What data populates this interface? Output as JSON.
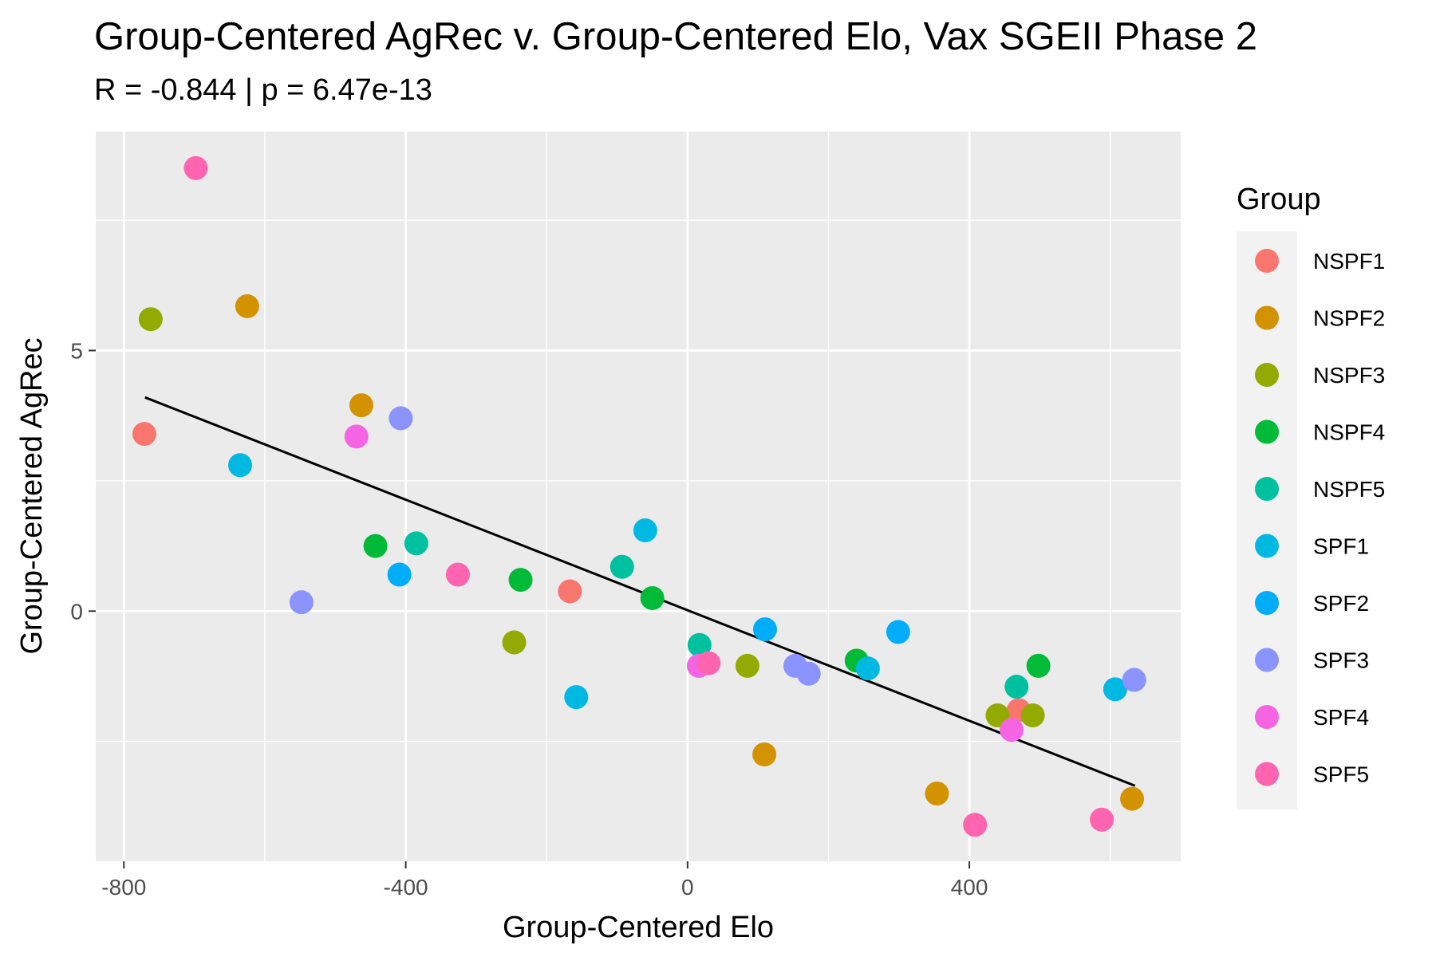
{
  "chart_data": {
    "type": "scatter",
    "title": "Group-Centered AgRec v. Group-Centered Elo, Vax SGEII Phase 2",
    "subtitle": "R = -0.844 | p = 6.47e-13",
    "xlabel": "Group-Centered Elo",
    "ylabel": "Group-Centered AgRec",
    "xlim": [
      -840,
      700
    ],
    "ylim": [
      -4.8,
      9.2
    ],
    "x_ticks": [
      -800,
      -400,
      0,
      400
    ],
    "y_ticks": [
      0,
      5
    ],
    "grid": true,
    "legend_title": "Group",
    "legend_position": "right",
    "trend_line": {
      "x": [
        -770,
        635
      ],
      "y": [
        4.1,
        -3.35
      ]
    },
    "series": [
      {
        "name": "NSPF1",
        "color": "#F8766D",
        "points": [
          [
            -771,
            3.4
          ],
          [
            -167,
            0.38
          ],
          [
            470,
            -1.9
          ]
        ]
      },
      {
        "name": "NSPF2",
        "color": "#D39200",
        "points": [
          [
            -625,
            5.85
          ],
          [
            -463,
            3.95
          ],
          [
            109,
            -2.75
          ],
          [
            354,
            -3.5
          ],
          [
            631,
            -3.6
          ]
        ]
      },
      {
        "name": "NSPF3",
        "color": "#93AA00",
        "points": [
          [
            -762,
            5.6
          ],
          [
            -246,
            -0.6
          ],
          [
            85,
            -1.05
          ],
          [
            440,
            -2.0
          ],
          [
            490,
            -2.0
          ]
        ]
      },
      {
        "name": "NSPF4",
        "color": "#00BA38",
        "points": [
          [
            -443,
            1.25
          ],
          [
            -237,
            0.6
          ],
          [
            -50,
            0.25
          ],
          [
            240,
            -0.95
          ],
          [
            498,
            -1.05
          ]
        ]
      },
      {
        "name": "NSPF5",
        "color": "#00C19F",
        "points": [
          [
            -385,
            1.3
          ],
          [
            -93,
            0.85
          ],
          [
            17,
            -0.65
          ],
          [
            467,
            -1.45
          ]
        ]
      },
      {
        "name": "SPF1",
        "color": "#00B9E3",
        "points": [
          [
            -635,
            2.8
          ],
          [
            -158,
            -1.65
          ],
          [
            -60,
            1.55
          ],
          [
            256,
            -1.1
          ],
          [
            607,
            -1.5
          ]
        ]
      },
      {
        "name": "SPF2",
        "color": "#00ADFA",
        "points": [
          [
            -409,
            0.7
          ],
          [
            110,
            -0.35
          ],
          [
            299,
            -0.4
          ]
        ]
      },
      {
        "name": "SPF3",
        "color": "#8B93FF",
        "points": [
          [
            -548,
            0.17
          ],
          [
            -407,
            3.7
          ],
          [
            153,
            -1.05
          ],
          [
            172,
            -1.2
          ],
          [
            634,
            -1.32
          ]
        ]
      },
      {
        "name": "SPF4",
        "color": "#F564E3",
        "points": [
          [
            -470,
            3.35
          ],
          [
            16,
            -1.05
          ],
          [
            460,
            -2.28
          ]
        ]
      },
      {
        "name": "SPF5",
        "color": "#FF64B0",
        "points": [
          [
            -698,
            8.5
          ],
          [
            -326,
            0.7
          ],
          [
            30,
            -1.0
          ],
          [
            408,
            -4.1
          ],
          [
            588,
            -4.0
          ]
        ]
      }
    ]
  }
}
